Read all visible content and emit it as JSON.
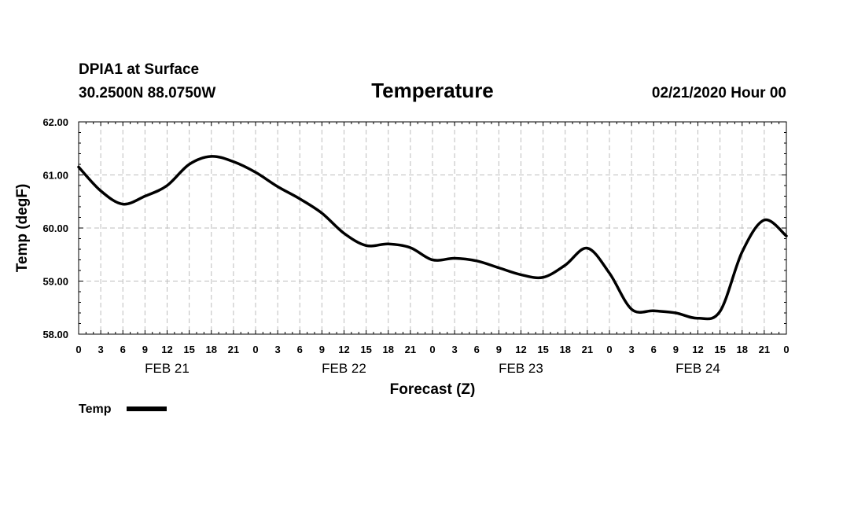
{
  "header": {
    "station": "DPIA1 at Surface",
    "coords": "30.2500N 88.0750W",
    "datetime": "02/21/2020 Hour 00"
  },
  "chart_data": {
    "type": "line",
    "title": "Temperature",
    "xlabel": "Forecast (Z)",
    "ylabel": "Temp (degF)",
    "xlim": [
      0,
      96
    ],
    "ylim": [
      58,
      62
    ],
    "y_ticks": [
      58.0,
      59.0,
      60.0,
      61.0,
      62.0
    ],
    "y_tick_labels": [
      "58.00",
      "59.00",
      "60.00",
      "61.00",
      "62.00"
    ],
    "x_tick_hours": [
      0,
      3,
      6,
      9,
      12,
      15,
      18,
      21,
      24,
      27,
      30,
      33,
      36,
      39,
      42,
      45,
      48,
      51,
      54,
      57,
      60,
      63,
      66,
      69,
      72,
      75,
      78,
      81,
      84,
      87,
      90,
      93,
      96
    ],
    "x_tick_labels": [
      "0",
      "3",
      "6",
      "9",
      "12",
      "15",
      "18",
      "21",
      "0",
      "3",
      "6",
      "9",
      "12",
      "15",
      "18",
      "21",
      "0",
      "3",
      "6",
      "9",
      "12",
      "15",
      "18",
      "21",
      "0",
      "3",
      "6",
      "9",
      "12",
      "15",
      "18",
      "21",
      "0"
    ],
    "day_labels": [
      {
        "label": "FEB 21",
        "center_hour": 12
      },
      {
        "label": "FEB 22",
        "center_hour": 36
      },
      {
        "label": "FEB 23",
        "center_hour": 60
      },
      {
        "label": "FEB 24",
        "center_hour": 84
      }
    ],
    "grid": true,
    "legend_position": "bottom-left",
    "series": [
      {
        "name": "Temp",
        "color": "#000000",
        "x": [
          0,
          3,
          6,
          9,
          12,
          15,
          18,
          21,
          24,
          27,
          30,
          33,
          36,
          39,
          42,
          45,
          48,
          51,
          54,
          57,
          60,
          63,
          66,
          69,
          72,
          75,
          78,
          81,
          84,
          87,
          90,
          93,
          96
        ],
        "values": [
          61.15,
          60.7,
          60.45,
          60.6,
          60.8,
          61.2,
          61.35,
          61.25,
          61.05,
          60.78,
          60.55,
          60.28,
          59.9,
          59.67,
          59.7,
          59.63,
          59.4,
          59.43,
          59.38,
          59.25,
          59.12,
          59.07,
          59.3,
          59.62,
          59.15,
          58.47,
          58.44,
          58.4,
          58.3,
          58.43,
          59.55,
          60.15,
          59.85
        ]
      }
    ]
  }
}
